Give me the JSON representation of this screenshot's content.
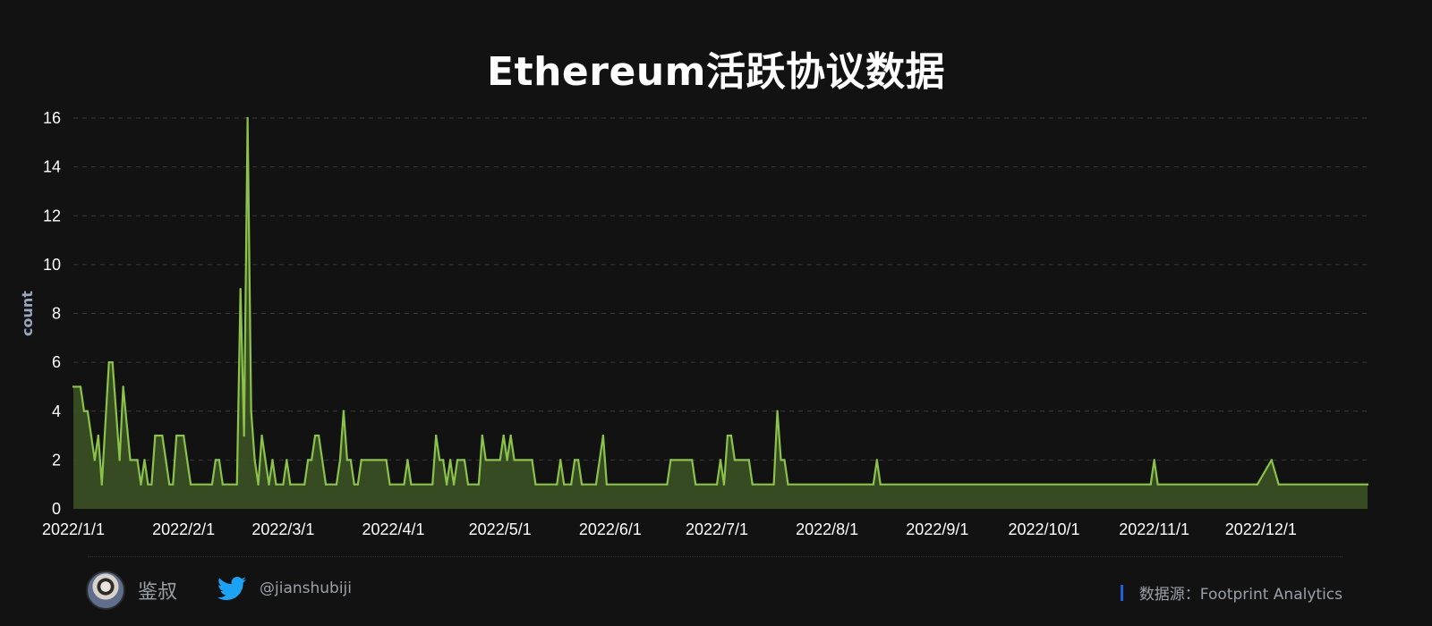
{
  "title": "Ethereum活跃协议数据",
  "author": {
    "name": "鉴叔",
    "avatar_icon": "avatar-portrait-icon"
  },
  "twitter": {
    "icon": "twitter-bird-icon",
    "handle": "@jianshubiji"
  },
  "source": {
    "text": "数据源：Footprint  Analytics",
    "accent_color": "#1f5fd6"
  },
  "colors": {
    "background": "#121212",
    "line": "#8bc34a",
    "fill": "#3a4f24",
    "grid": "#3a3a3a",
    "text": "#ffffff",
    "muted": "#9aa0aa"
  },
  "chart_data": {
    "type": "area",
    "title": "Ethereum活跃协议数据",
    "xlabel": "",
    "ylabel": "count",
    "xlim": [
      "2022-01-01",
      "2022-12-31"
    ],
    "ylim": [
      0,
      16
    ],
    "yticks": [
      0,
      2,
      4,
      6,
      8,
      10,
      12,
      14,
      16
    ],
    "xtick_labels": [
      "2022/1/1",
      "2022/2/1",
      "2022/3/1",
      "2022/4/1",
      "2022/5/1",
      "2022/6/1",
      "2022/7/1",
      "2022/8/1",
      "2022/9/1",
      "2022/10/1",
      "2022/11/1",
      "2022/12/1"
    ],
    "xtick_dates": [
      "2022-01-01",
      "2022-02-01",
      "2022-03-01",
      "2022-04-01",
      "2022-05-01",
      "2022-06-01",
      "2022-07-01",
      "2022-08-01",
      "2022-09-01",
      "2022-10-01",
      "2022-11-01",
      "2022-12-01"
    ],
    "grid": true,
    "legend": "none",
    "series": [
      {
        "points": [
          [
            "2022-01-01",
            5
          ],
          [
            "2022-01-03",
            5
          ],
          [
            "2022-01-04",
            4
          ],
          [
            "2022-01-05",
            4
          ],
          [
            "2022-01-06",
            3
          ],
          [
            "2022-01-07",
            2
          ],
          [
            "2022-01-08",
            3
          ],
          [
            "2022-01-09",
            1
          ],
          [
            "2022-01-11",
            6
          ],
          [
            "2022-01-12",
            6
          ],
          [
            "2022-01-14",
            2
          ],
          [
            "2022-01-15",
            5
          ],
          [
            "2022-01-17",
            2
          ],
          [
            "2022-01-19",
            2
          ],
          [
            "2022-01-20",
            1
          ],
          [
            "2022-01-21",
            2
          ],
          [
            "2022-01-22",
            1
          ],
          [
            "2022-01-23",
            1
          ],
          [
            "2022-01-24",
            3
          ],
          [
            "2022-01-26",
            3
          ],
          [
            "2022-01-28",
            1
          ],
          [
            "2022-01-29",
            1
          ],
          [
            "2022-01-30",
            3
          ],
          [
            "2022-02-01",
            3
          ],
          [
            "2022-02-03",
            1
          ],
          [
            "2022-02-09",
            1
          ],
          [
            "2022-02-10",
            2
          ],
          [
            "2022-02-11",
            2
          ],
          [
            "2022-02-12",
            1
          ],
          [
            "2022-02-16",
            1
          ],
          [
            "2022-02-17",
            9
          ],
          [
            "2022-02-18",
            3
          ],
          [
            "2022-02-19",
            16
          ],
          [
            "2022-02-20",
            4
          ],
          [
            "2022-02-21",
            2
          ],
          [
            "2022-02-22",
            1
          ],
          [
            "2022-02-23",
            3
          ],
          [
            "2022-02-24",
            2
          ],
          [
            "2022-02-25",
            1
          ],
          [
            "2022-02-26",
            2
          ],
          [
            "2022-02-27",
            1
          ],
          [
            "2022-03-01",
            1
          ],
          [
            "2022-03-02",
            2
          ],
          [
            "2022-03-03",
            1
          ],
          [
            "2022-03-07",
            1
          ],
          [
            "2022-03-08",
            2
          ],
          [
            "2022-03-09",
            2
          ],
          [
            "2022-03-10",
            3
          ],
          [
            "2022-03-11",
            3
          ],
          [
            "2022-03-13",
            1
          ],
          [
            "2022-03-16",
            1
          ],
          [
            "2022-03-17",
            2
          ],
          [
            "2022-03-18",
            4
          ],
          [
            "2022-03-19",
            2
          ],
          [
            "2022-03-20",
            2
          ],
          [
            "2022-03-21",
            1
          ],
          [
            "2022-03-22",
            1
          ],
          [
            "2022-03-23",
            2
          ],
          [
            "2022-03-30",
            2
          ],
          [
            "2022-03-31",
            1
          ],
          [
            "2022-04-04",
            1
          ],
          [
            "2022-04-05",
            2
          ],
          [
            "2022-04-06",
            1
          ],
          [
            "2022-04-12",
            1
          ],
          [
            "2022-04-13",
            3
          ],
          [
            "2022-04-14",
            2
          ],
          [
            "2022-04-15",
            2
          ],
          [
            "2022-04-16",
            1
          ],
          [
            "2022-04-17",
            2
          ],
          [
            "2022-04-18",
            1
          ],
          [
            "2022-04-19",
            2
          ],
          [
            "2022-04-21",
            2
          ],
          [
            "2022-04-22",
            1
          ],
          [
            "2022-04-25",
            1
          ],
          [
            "2022-04-26",
            3
          ],
          [
            "2022-04-27",
            2
          ],
          [
            "2022-05-01",
            2
          ],
          [
            "2022-05-02",
            3
          ],
          [
            "2022-05-03",
            2
          ],
          [
            "2022-05-04",
            3
          ],
          [
            "2022-05-05",
            2
          ],
          [
            "2022-05-10",
            2
          ],
          [
            "2022-05-11",
            1
          ],
          [
            "2022-05-17",
            1
          ],
          [
            "2022-05-18",
            2
          ],
          [
            "2022-05-19",
            1
          ],
          [
            "2022-05-21",
            1
          ],
          [
            "2022-05-22",
            2
          ],
          [
            "2022-05-23",
            2
          ],
          [
            "2022-05-24",
            1
          ],
          [
            "2022-05-28",
            1
          ],
          [
            "2022-05-30",
            3
          ],
          [
            "2022-05-31",
            1
          ],
          [
            "2022-06-17",
            1
          ],
          [
            "2022-06-18",
            2
          ],
          [
            "2022-06-24",
            2
          ],
          [
            "2022-06-25",
            1
          ],
          [
            "2022-07-01",
            1
          ],
          [
            "2022-07-02",
            2
          ],
          [
            "2022-07-03",
            1
          ],
          [
            "2022-07-04",
            3
          ],
          [
            "2022-07-05",
            3
          ],
          [
            "2022-07-06",
            2
          ],
          [
            "2022-07-10",
            2
          ],
          [
            "2022-07-11",
            1
          ],
          [
            "2022-07-17",
            1
          ],
          [
            "2022-07-18",
            4
          ],
          [
            "2022-07-19",
            2
          ],
          [
            "2022-07-20",
            2
          ],
          [
            "2022-07-21",
            1
          ],
          [
            "2022-08-14",
            1
          ],
          [
            "2022-08-15",
            2
          ],
          [
            "2022-08-16",
            1
          ],
          [
            "2022-10-31",
            1
          ],
          [
            "2022-11-01",
            2
          ],
          [
            "2022-11-02",
            1
          ],
          [
            "2022-11-30",
            1
          ],
          [
            "2022-12-04",
            2
          ],
          [
            "2022-12-06",
            1
          ],
          [
            "2022-12-31",
            1
          ]
        ]
      }
    ]
  }
}
